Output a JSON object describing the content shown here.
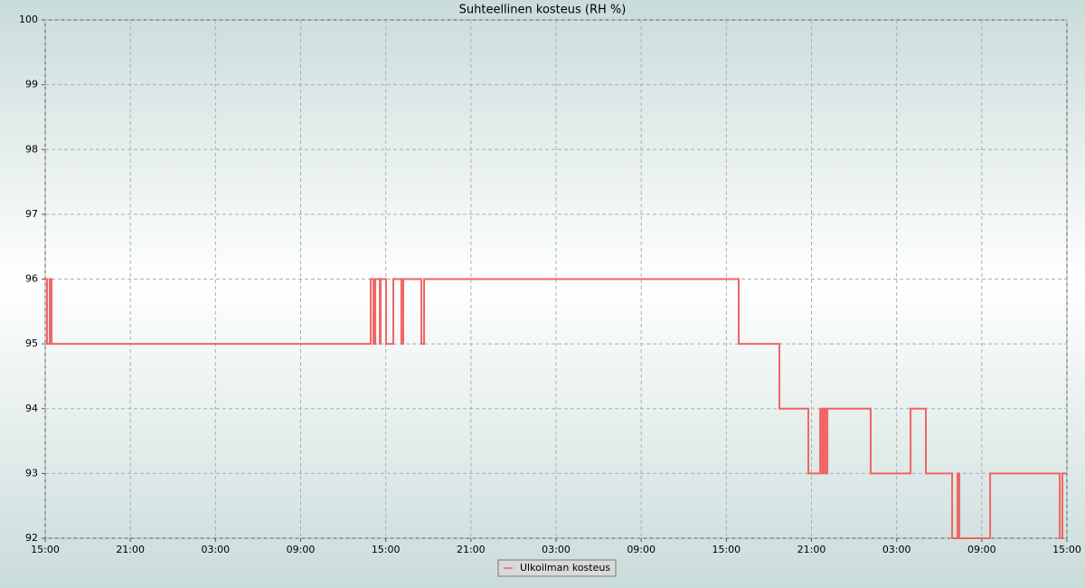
{
  "chart_data": {
    "type": "line",
    "title": "Suhteellinen kosteus (RH %)",
    "series": [
      {
        "name": "Ulkoilman kosteus",
        "color": "#f06464",
        "x": [
          0,
          0.13,
          0.13,
          0.32,
          0.32,
          0.45,
          0.45,
          22.94,
          22.94,
          23.13,
          23.13,
          23.26,
          23.26,
          23.58,
          23.58,
          23.64,
          23.64,
          24.02,
          24.02,
          24.53,
          24.53,
          25.1,
          25.1,
          25.23,
          25.23,
          26.51,
          26.51,
          26.7,
          26.7,
          48.87,
          48.87,
          51.74,
          51.74,
          53.78,
          53.78,
          54.61,
          54.61,
          54.74,
          54.74,
          54.86,
          54.86,
          54.99,
          54.99,
          55.12,
          55.12,
          58.17,
          58.17,
          60.98,
          60.98,
          62.06,
          62.06,
          63.91,
          63.91,
          64.29,
          64.29,
          64.42,
          64.42,
          66.59,
          66.59,
          71.49,
          71.49,
          71.68,
          71.68,
          72
        ],
        "values": [
          96,
          96,
          95,
          95,
          96,
          96,
          95,
          95,
          96,
          96,
          95,
          95,
          96,
          96,
          95,
          95,
          96,
          96,
          95,
          95,
          96,
          96,
          95,
          95,
          96,
          96,
          95,
          95,
          96,
          96,
          95,
          95,
          94,
          94,
          93,
          93,
          94,
          94,
          93,
          93,
          94,
          94,
          93,
          93,
          94,
          94,
          93,
          93,
          94,
          94,
          93,
          93,
          92,
          92,
          93,
          93,
          92,
          92,
          93,
          93,
          92,
          92,
          93,
          93
        ]
      }
    ],
    "xlim": [
      0,
      72
    ],
    "xticks": [
      {
        "value": 0,
        "label": "15:00"
      },
      {
        "value": 6,
        "label": "21:00"
      },
      {
        "value": 12,
        "label": "03:00"
      },
      {
        "value": 18,
        "label": "09:00"
      },
      {
        "value": 24,
        "label": "15:00"
      },
      {
        "value": 30,
        "label": "21:00"
      },
      {
        "value": 36,
        "label": "03:00"
      },
      {
        "value": 42,
        "label": "09:00"
      },
      {
        "value": 48,
        "label": "15:00"
      },
      {
        "value": 54,
        "label": "21:00"
      },
      {
        "value": 60,
        "label": "03:00"
      },
      {
        "value": 66,
        "label": "09:00"
      },
      {
        "value": 72,
        "label": "15:00"
      }
    ],
    "ylim": [
      92,
      100
    ],
    "yticks": [
      92,
      93,
      94,
      95,
      96,
      97,
      98,
      99,
      100
    ],
    "grid": true,
    "legend": "bottom"
  }
}
